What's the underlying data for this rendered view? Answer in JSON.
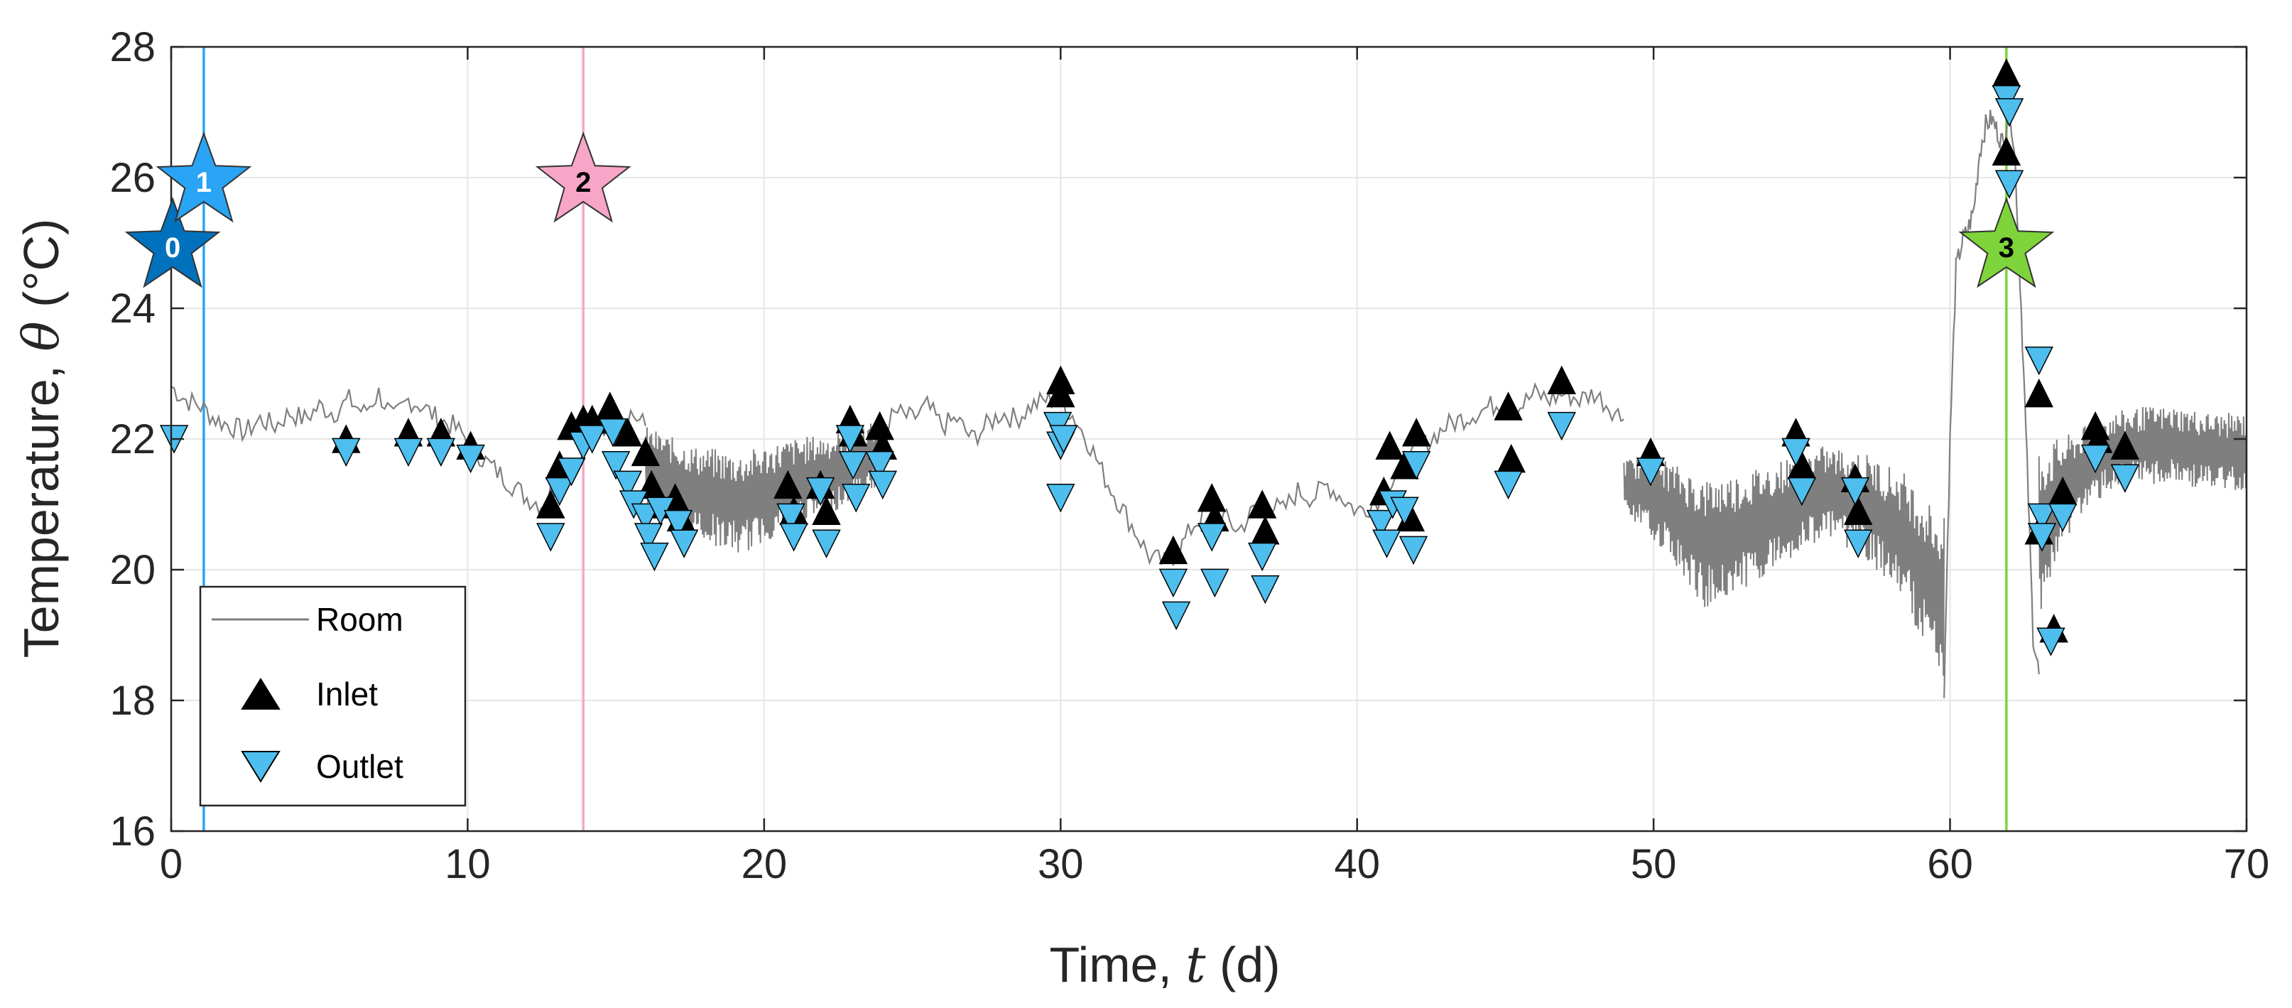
{
  "colors": {
    "room": "#7f7f7f",
    "inlet": "#000000",
    "outlet": "#4dbeee",
    "event_0": "#0072bd",
    "event_1": "#2aa4f4",
    "event_2": "#f7a6c8",
    "event_3": "#7ed43a",
    "grid": "#e6e6e6",
    "axis": "#262626"
  },
  "chart_data": {
    "type": "line",
    "title": "",
    "xlabel": "Time, t (d)",
    "xlabel_parts": [
      "Time, ",
      "t",
      " (d)"
    ],
    "ylabel": "Temperature, θ (°C)",
    "ylabel_parts": [
      "Temperature, ",
      "θ",
      " (°C)"
    ],
    "xlim": [
      0,
      70
    ],
    "ylim": [
      16,
      28
    ],
    "xticks": [
      0,
      10,
      20,
      30,
      40,
      50,
      60,
      70
    ],
    "yticks": [
      16,
      18,
      20,
      22,
      24,
      26,
      28
    ],
    "xtick_labels": [
      "0",
      "10",
      "20",
      "30",
      "40",
      "50",
      "60",
      "70"
    ],
    "ytick_labels": [
      "16",
      "18",
      "20",
      "22",
      "24",
      "26",
      "28"
    ],
    "grid": true,
    "legend": {
      "location": "bottom-left",
      "entries": [
        "Room",
        "Inlet",
        "Outlet"
      ]
    },
    "room_series": {
      "name": "Room",
      "smooth_segments": [
        {
          "x": [
            0,
            0.5,
            1,
            1.5,
            2,
            2.5,
            3,
            3.5,
            4,
            4.5,
            5,
            5.5,
            6,
            6.5,
            7,
            7.5,
            8,
            8.5,
            9,
            9.5,
            10,
            10.5,
            11,
            11.5,
            12,
            12.5,
            13,
            13.5,
            14,
            14.5,
            15,
            15.5,
            16
          ],
          "y": [
            22.8,
            22.6,
            22.5,
            22.3,
            22.2,
            22.1,
            22.3,
            22.2,
            22.4,
            22.3,
            22.5,
            22.4,
            22.6,
            22.4,
            22.7,
            22.3,
            22.6,
            22.5,
            22.3,
            22.2,
            22.0,
            21.7,
            21.5,
            21.3,
            21.1,
            21.0,
            21.3,
            21.6,
            21.9,
            22.1,
            22.3,
            22.4,
            22.2
          ]
        },
        {
          "x": [
            24,
            24.5,
            25,
            25.5,
            26,
            26.5,
            27,
            27.5,
            28,
            28.5,
            29,
            29.5,
            30,
            30.5,
            31,
            31.5,
            32,
            32.5,
            33,
            33.5,
            34,
            34.5,
            35,
            35.5,
            36,
            36.5,
            37,
            37.5,
            38,
            38.5,
            39,
            39.5,
            40,
            40.5,
            41
          ],
          "y": [
            22.2,
            22.4,
            22.3,
            22.5,
            22.2,
            22.3,
            22.0,
            22.2,
            22.4,
            22.3,
            22.5,
            22.6,
            22.6,
            22.3,
            21.9,
            21.4,
            21.0,
            20.6,
            20.2,
            20.1,
            20.3,
            20.7,
            20.9,
            20.8,
            20.6,
            20.9,
            21.0,
            20.9,
            21.2,
            21.1,
            21.3,
            21.1,
            20.9,
            21.0,
            21.2
          ]
        },
        {
          "x": [
            41,
            41.5,
            42,
            42.5,
            43,
            43.5,
            44,
            44.5,
            45,
            45.5,
            46,
            46.5,
            47,
            47.5,
            48,
            48.5,
            49
          ],
          "y": [
            21.2,
            21.5,
            21.8,
            22.0,
            22.2,
            22.3,
            22.4,
            22.5,
            22.6,
            22.5,
            22.7,
            22.6,
            22.7,
            22.6,
            22.7,
            22.5,
            22.3
          ]
        },
        {
          "x": [
            59.8,
            60,
            60.2,
            60.4,
            60.6,
            60.8,
            61,
            61.2,
            61.4,
            61.6,
            61.8,
            62,
            62.2,
            62.4,
            62.6,
            62.8,
            63
          ],
          "y": [
            18.2,
            22.0,
            24.6,
            25.0,
            25.2,
            25.5,
            26.4,
            26.8,
            26.9,
            26.7,
            26.5,
            27.2,
            26.2,
            24.0,
            21.6,
            19.0,
            18.4
          ]
        }
      ],
      "oscillating_segments": [
        {
          "x_start": 16,
          "x_end": 24,
          "mid": [
            21.6,
            21.2,
            21.0,
            21.3,
            21.5,
            21.8
          ],
          "amplitude": [
            0.6,
            0.7,
            0.8,
            0.7,
            0.6,
            0.5
          ]
        },
        {
          "x_start": 49,
          "x_end": 59.8,
          "mid": [
            21.3,
            21.0,
            20.4,
            20.6,
            20.9,
            21.2,
            21.0,
            20.5,
            19.5
          ],
          "amplitude": [
            0.4,
            0.7,
            1.0,
            0.9,
            0.8,
            0.7,
            0.8,
            1.0,
            1.3
          ]
        },
        {
          "x_start": 63,
          "x_end": 70,
          "mid": [
            20.6,
            21.4,
            21.8,
            21.9,
            21.9,
            21.8,
            21.8
          ],
          "amplitude": [
            1.3,
            0.7,
            0.6,
            0.6,
            0.6,
            0.6,
            0.6
          ]
        }
      ]
    },
    "inlet_series": {
      "name": "Inlet",
      "x": [
        5.9,
        8.0,
        9.1,
        10.1,
        12.8,
        13.1,
        13.5,
        13.9,
        14.2,
        14.8,
        15.0,
        15.4,
        16.0,
        16.2,
        16.5,
        17.0,
        17.2,
        20.8,
        21.0,
        21.9,
        22.1,
        22.9,
        23.0,
        23.9,
        24.0,
        30.0,
        30.0,
        33.8,
        35.1,
        35.2,
        36.8,
        36.9,
        40.9,
        41.1,
        41.6,
        41.8,
        42.0,
        45.1,
        45.2,
        46.9,
        49.9,
        54.8,
        55.0,
        56.8,
        56.9,
        61.9,
        61.9,
        63.0,
        63.0,
        63.5,
        63.8,
        64.9,
        65.0,
        65.9
      ],
      "y": [
        22.0,
        22.1,
        22.1,
        21.9,
        21.0,
        21.6,
        22.2,
        22.3,
        22.3,
        22.5,
        22.3,
        22.1,
        21.8,
        21.3,
        21.0,
        21.1,
        20.8,
        21.3,
        20.9,
        21.3,
        20.9,
        22.3,
        22.1,
        22.2,
        21.9,
        22.9,
        22.7,
        20.3,
        21.1,
        20.8,
        21.0,
        20.6,
        21.2,
        21.9,
        21.6,
        20.8,
        22.1,
        22.5,
        21.7,
        22.9,
        21.8,
        22.1,
        21.6,
        21.4,
        20.9,
        27.6,
        26.4,
        22.7,
        20.6,
        19.1,
        21.2,
        22.2,
        22.0,
        21.9
      ]
    },
    "outlet_series": {
      "name": "Outlet",
      "x": [
        0.1,
        5.9,
        8.0,
        9.1,
        10.1,
        12.8,
        13.1,
        13.5,
        13.9,
        14.2,
        14.9,
        15.0,
        15.4,
        15.6,
        16.0,
        16.1,
        16.3,
        16.5,
        17.1,
        17.3,
        20.9,
        21.0,
        21.9,
        22.1,
        22.9,
        23.0,
        23.1,
        23.9,
        24.0,
        29.9,
        30.0,
        30.1,
        30.0,
        33.8,
        33.9,
        35.1,
        35.2,
        36.8,
        36.9,
        40.8,
        41.0,
        41.2,
        41.6,
        41.9,
        42.0,
        45.1,
        46.9,
        49.9,
        54.8,
        55.0,
        56.8,
        56.9,
        61.9,
        62.0,
        62.0,
        63.0,
        63.1,
        63.1,
        63.4,
        63.8,
        64.9,
        65.9
      ],
      "y": [
        22.0,
        21.8,
        21.8,
        21.8,
        21.7,
        20.5,
        21.2,
        21.5,
        21.9,
        22.0,
        22.1,
        21.6,
        21.3,
        21.0,
        20.8,
        20.5,
        20.2,
        20.9,
        20.7,
        20.4,
        20.8,
        20.5,
        21.2,
        20.4,
        22.0,
        21.6,
        21.1,
        21.6,
        21.3,
        22.2,
        21.9,
        22.0,
        21.1,
        19.8,
        19.3,
        20.5,
        19.8,
        20.2,
        19.7,
        20.7,
        20.4,
        21.0,
        20.9,
        20.3,
        21.6,
        21.3,
        22.2,
        21.5,
        21.8,
        21.2,
        21.2,
        20.4,
        27.2,
        27.0,
        25.9,
        23.2,
        20.8,
        20.5,
        18.9,
        20.8,
        21.7,
        21.4
      ]
    },
    "events": [
      {
        "label": "0",
        "x": 0.05,
        "y": 25.0,
        "color": "#0072bd",
        "vline": false
      },
      {
        "label": "1",
        "x": 1.1,
        "y": 26.0,
        "color": "#2aa4f4",
        "vline": true
      },
      {
        "label": "2",
        "x": 13.9,
        "y": 26.0,
        "color": "#f7a6c8",
        "vline": true
      },
      {
        "label": "3",
        "x": 61.9,
        "y": 25.0,
        "color": "#7ed43a",
        "vline": true
      }
    ]
  }
}
